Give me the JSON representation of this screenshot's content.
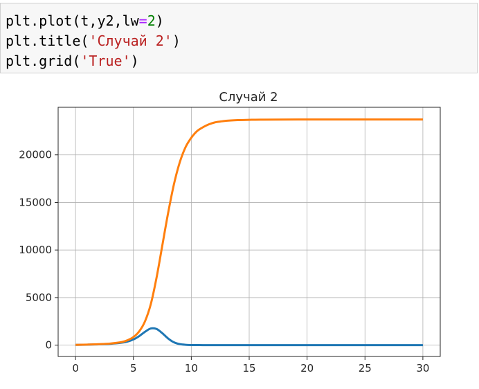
{
  "code_cell": {
    "lines": [
      [
        {
          "text": "plt.plot(t,y2,lw",
          "kind": "plain"
        },
        {
          "text": "=",
          "kind": "op"
        },
        {
          "text": "2",
          "kind": "num"
        },
        {
          "text": ")",
          "kind": "plain"
        }
      ],
      [
        {
          "text": "plt.title(",
          "kind": "plain"
        },
        {
          "text": "'Случай 2'",
          "kind": "str"
        },
        {
          "text": ")",
          "kind": "plain"
        }
      ],
      [
        {
          "text": "plt.grid(",
          "kind": "plain"
        },
        {
          "text": "'True'",
          "kind": "str"
        },
        {
          "text": ")",
          "kind": "plain"
        }
      ]
    ]
  },
  "chart_data": {
    "type": "line",
    "title": "Случай 2",
    "xlabel": "",
    "ylabel": "",
    "xlim": [
      -1.5,
      31.5
    ],
    "ylim": [
      -1190,
      25000
    ],
    "xticks": [
      0,
      5,
      10,
      15,
      20,
      25,
      30
    ],
    "yticks": [
      0,
      5000,
      10000,
      15000,
      20000
    ],
    "grid": true,
    "legend": "none",
    "series": [
      {
        "color": "#1f77b4",
        "x": [
          0,
          1,
          2,
          3,
          4,
          4.5,
          5,
          5.5,
          6,
          6.5,
          7,
          7.5,
          8,
          8.5,
          9,
          9.5,
          10,
          11,
          12,
          15,
          20,
          25,
          30
        ],
        "y": [
          30,
          50,
          80,
          140,
          260,
          380,
          600,
          950,
          1400,
          1750,
          1700,
          1250,
          700,
          300,
          110,
          40,
          15,
          5,
          2,
          0,
          0,
          0,
          0
        ]
      },
      {
        "color": "#ff7f0e",
        "x": [
          0,
          1,
          2,
          3,
          4,
          4.5,
          5,
          5.5,
          6,
          6.5,
          7,
          7.5,
          8,
          8.5,
          9,
          9.5,
          10,
          10.5,
          11,
          11.5,
          12,
          12.5,
          13,
          14,
          15,
          16,
          20,
          25,
          30
        ],
        "y": [
          30,
          60,
          100,
          170,
          330,
          520,
          850,
          1450,
          2500,
          4300,
          7100,
          10500,
          13900,
          16900,
          19200,
          20800,
          21800,
          22500,
          22900,
          23200,
          23400,
          23500,
          23580,
          23650,
          23680,
          23700,
          23720,
          23720,
          23720
        ]
      }
    ]
  }
}
